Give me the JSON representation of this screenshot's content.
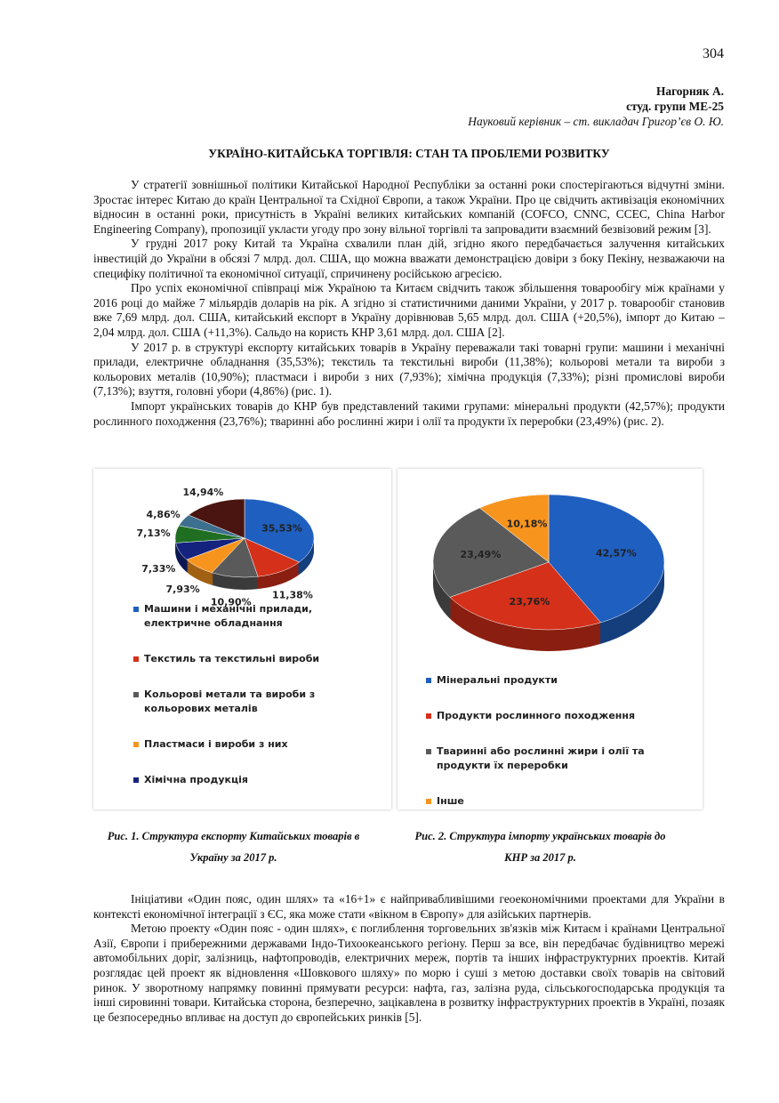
{
  "page_number": "304",
  "author": {
    "name": "Нагорняк А.",
    "group": "студ. групи МЕ-25",
    "supervisor": "Науковий керівник – ст. викладач Григор’єв О. Ю."
  },
  "title": "УКРАЇНО-КИТАЙСЬКА ТОРГІВЛЯ: СТАН ТА ПРОБЛЕМИ РОЗВИТКУ",
  "paragraphs": [
    "У стратегії зовнішньої політики Китайської Народної Республіки за останні роки спостерігаються відчутні зміни. Зростає інтерес Китаю до країн Центральної та Східної Європи, а також України. Про це свідчить активізація економічних відносин в останні роки, присутність в Україні великих китайських компаній (COFCO, CNNC, CCEC, China Harbor Engineering Company), пропозиції укласти угоду про зону вільної торгівлі та запровадити взаємний безвізовий режим [3].",
    "У грудні 2017 року Китай та Україна схвалили план дій, згідно якого передбачається залучення китайських інвестицій до України в обсязі 7 млрд. дол. США, що можна вважати демонстрацією довіри з боку Пекіну, незважаючи на специфіку політичної та економічної ситуації, спричинену російською агресією.",
    "Про успіх економічної співпраці між Україною та Китаєм свідчить також збільшення товарообігу між країнами у 2016 році до майже 7 мільярдів доларів на рік. А згідно зі статистичними даними України, у 2017 р. товарообіг становив вже 7,69 млрд. дол. США, китайський експорт в Україну дорівнював 5,65 млрд. дол. США (+20,5%), імпорт до Китаю – 2,04 млрд. дол. США (+11,3%). Сальдо на користь КНР 3,61 млрд. дол. США [2].",
    "У 2017 р. в структурі експорту китайських товарів в Україну переважали такі товарні групи: машини і механічні прилади, електричне обладнання (35,53%); текстиль та текстильні вироби (11,38%); кольорові метали та вироби з кольорових металів (10,90%); пластмаси і вироби з них (7,93%); хімічна продукція (7,33%); різні промислові вироби (7,13%); взуття, головні убори (4,86%) (рис. 1).",
    "Імпорт українських товарів до КНР був представлений такими групами: мінеральні продукти (42,57%); продукти рослинного походження (23,76%); тваринні або рослинні жири і олії та продукти їх переробки (23,49%) (рис. 2)."
  ],
  "chart_data": [
    {
      "type": "pie",
      "caption": "Рис. 1. Структура експорту Китайських товарів в Україну за 2017 р.",
      "categories": [
        "Машини і механічні прилади, електричне обладнання",
        "Текстиль та текстильні вироби",
        "Кольорові метали та вироби з кольорових металів",
        "Пластмаси і вироби з них",
        "Хімічна продукція",
        null,
        null,
        null
      ],
      "values": [
        35.53,
        11.38,
        10.9,
        7.93,
        7.33,
        7.13,
        4.86,
        14.94
      ],
      "value_labels": [
        "35,53%",
        "11,38%",
        "10,90%",
        "7,93%",
        "7,33%",
        "7,13%",
        "4,86%",
        "14,94%"
      ],
      "colors": [
        "#1f5fbf",
        "#d4301a",
        "#5a5a5a",
        "#f7941d",
        "#14237e",
        "#1f6e22",
        "#3d6f8f",
        "#4a1410"
      ]
    },
    {
      "type": "pie",
      "caption": "Рис. 2. Структура імпорту українських товарів до КНР за 2017 р.",
      "categories": [
        "Мінеральні продукти",
        "Продукти рослинного походження",
        "Тваринні або рослинні жири і олії та продукти їх переробки",
        "Інше"
      ],
      "values": [
        42.57,
        23.76,
        23.49,
        10.18
      ],
      "value_labels": [
        "42,57%",
        "23,76%",
        "23,49%",
        "10,18%"
      ],
      "colors": [
        "#1f5fbf",
        "#d4301a",
        "#5a5a5a",
        "#f7941d"
      ]
    }
  ],
  "paragraphs_after": [
    "Ініціативи «Один пояс, один шлях» та «16+1» є найпривабливішими геоекономічними проектами для України в контексті економічної інтеграції з ЄС, яка може стати «вікном в Європу» для азійських партнерів.",
    "Метою проекту «Один пояс - один шлях», є поглиблення торговельних зв'язків між Китаєм і країнами Центральної Азії, Європи і прибережними державами Індо-Тихоокеанського регіону. Перш за все, він передбачає будівництво мережі автомобільних доріг, залізниць, нафтопроводів, електричних мереж, портів та інших інфраструктурних проектів. Китай розглядає цей проект як відновлення «Шовкового шляху» по морю і суші з метою доставки своїх товарів на світовий ринок. У зворотному напрямку повинні прямувати ресурси: нафта, газ, залізна руда, сільськогосподарська продукція та інші сировинні товари. Китайська сторона, безперечно, зацікавлена в розвитку інфраструктурних проектів в Україні, позаяк це безпосередньо впливає на доступ до європейських ринків [5]."
  ]
}
